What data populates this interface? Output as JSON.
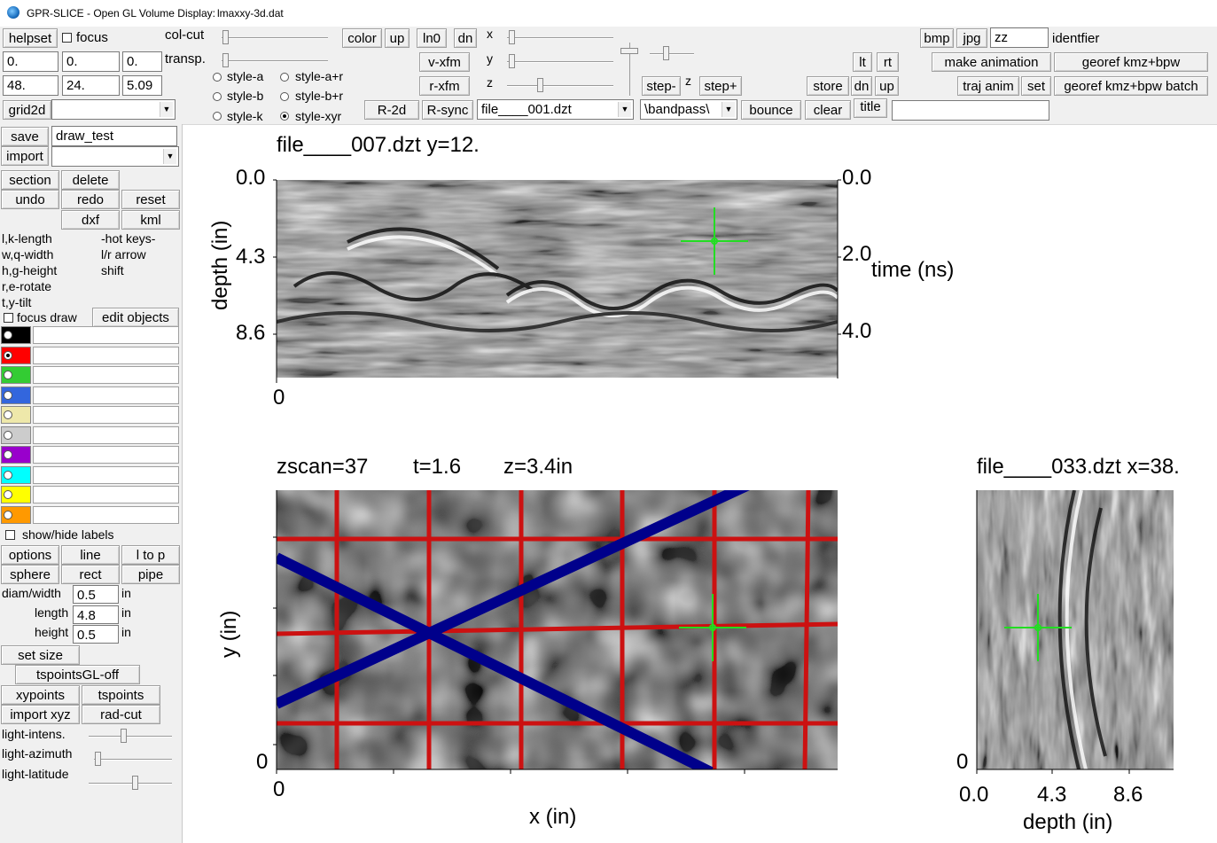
{
  "window": {
    "app": "GPR-SLICE -  Open GL Volume Display:",
    "file": "lmaxxy-3d.dat"
  },
  "toolbar": {
    "helpset": "helpset",
    "focus": "focus",
    "fields_row1": [
      "0.",
      "0.",
      "0."
    ],
    "fields_row2": [
      "48.",
      "24.",
      "5.09"
    ],
    "grid2d": "grid2d",
    "col_cut": "col-cut",
    "transp": "transp.",
    "styles": [
      "style-a",
      "style-a+r",
      "style-b",
      "style-b+r",
      "style-k",
      "style-xyr"
    ],
    "selected_style": "style-xyr",
    "color": "color",
    "up": "up",
    "ln0": "ln0",
    "dn": "dn",
    "v_xfm": "v-xfm",
    "r_xfm": "r-xfm",
    "r_2d": "R-2d",
    "r_sync": "R-sync",
    "file_select": "file____001.dzt",
    "axes": [
      "x",
      "y",
      "z"
    ],
    "step_minus": "step-",
    "z": "z",
    "step_plus": "step+",
    "filter_select": "\\bandpass\\",
    "bounce": "bounce",
    "store": "store",
    "clear": "clear",
    "title": "title",
    "lt": "lt",
    "rt": "rt",
    "dn2": "dn",
    "up2": "up",
    "bmp": "bmp",
    "jpg": "jpg",
    "ident_value": "zz",
    "identfier": "identfier",
    "make_animation": "make animation",
    "georef": "georef kmz+bpw",
    "traj_anim": "traj anim",
    "set": "set",
    "georef_batch": "georef kmz+bpw batch"
  },
  "left": {
    "save": "save",
    "draw_name": "draw_test",
    "import": "import",
    "section": "section",
    "delete": "delete",
    "undo": "undo",
    "redo": "redo",
    "reset": "reset",
    "dxf": "dxf",
    "kml": "kml",
    "hotkeys_left": [
      "l,k-length",
      "w,q-width",
      "h,g-height",
      "r,e-rotate",
      "t,y-tilt"
    ],
    "hotkeys_right": [
      "-hot keys-",
      "l/r arrow",
      "shift"
    ],
    "focus_draw": "focus draw",
    "edit_objects": "edit objects",
    "colors": [
      "#000000",
      "#ff0000",
      "#33cc33",
      "#3366dd",
      "#eee8aa",
      "#cccccc",
      "#9900cc",
      "#00ffff",
      "#ffff00",
      "#ff9900"
    ],
    "selected_color": 1,
    "show_hide_labels": "show/hide labels",
    "options": "options",
    "line": "line",
    "l_to_p": "l to p",
    "sphere": "sphere",
    "rect": "rect",
    "pipe": "pipe",
    "diam_width": "diam/width",
    "diam_val": "0.5",
    "length": "length",
    "length_val": "4.8",
    "height": "height",
    "height_val": "0.5",
    "unit": "in",
    "set_size": "set size",
    "tspoints_gl": "tspointsGL-off",
    "xypoints": "xypoints",
    "tspoints": "tspoints",
    "import_xyz": "import xyz",
    "rad_cut": "rad-cut",
    "light_intens": "light-intens.",
    "light_azimuth": "light-azimuth",
    "light_latitude": "light-latitude"
  },
  "plots": {
    "top": {
      "title": "file____007.dzt y=12.",
      "ylabel": "depth (in)",
      "y2label": "time (ns)",
      "yticks": [
        "0.0",
        "4.3",
        "8.6"
      ],
      "y2ticks": [
        "0.0",
        "2.0",
        "4.0"
      ],
      "xtick0": "0"
    },
    "main": {
      "title_zscan": "zscan=37",
      "title_t": "t=1.6",
      "title_z": "z=3.4in",
      "xlabel": "x (in)",
      "ylabel": "y (in)",
      "xtick0": "0",
      "ytick0": "0"
    },
    "side": {
      "title": "file____033.dzt x=38.",
      "xlabel": "depth (in)",
      "xticks": [
        "0.0",
        "4.3",
        "8.6"
      ],
      "ytick0": "0"
    }
  }
}
